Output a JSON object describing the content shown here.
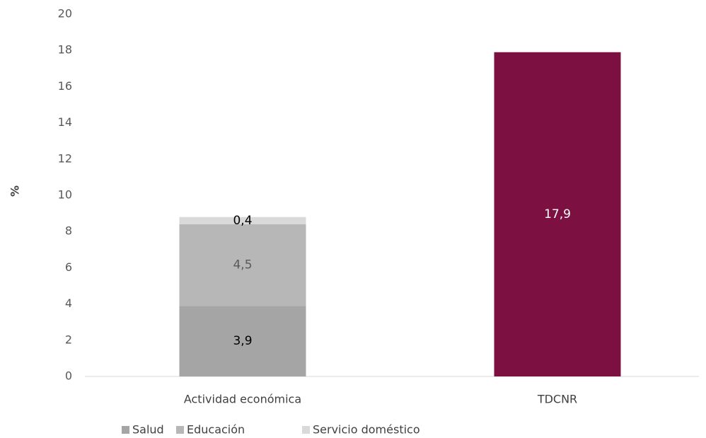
{
  "chart_data": {
    "type": "bar",
    "stacked": true,
    "categories": [
      "Actividad económica",
      "TDCNR"
    ],
    "series": [
      {
        "name": "Salud",
        "values": [
          3.9,
          null
        ],
        "color": "#a5a5a5",
        "label_color": "#000000"
      },
      {
        "name": "Educación",
        "values": [
          4.5,
          null
        ],
        "color": "#b7b7b7",
        "label_color": "#595959"
      },
      {
        "name": "Servicio doméstico",
        "values": [
          0.4,
          null
        ],
        "color": "#d9d9d9",
        "label_color": "#000000"
      },
      {
        "name": "",
        "values": [
          null,
          17.9
        ],
        "color": "#7b1041",
        "label_color": "#ffffff"
      }
    ],
    "data_labels": [
      [
        "3,9",
        "4,5",
        "0,4"
      ],
      [
        "17,9"
      ]
    ],
    "yticks": [
      "0",
      "2",
      "4",
      "6",
      "8",
      "10",
      "12",
      "14",
      "16",
      "18",
      "20"
    ],
    "ylim": [
      0,
      20
    ],
    "ylabel": "%",
    "xlabel": "",
    "title": "",
    "legend": {
      "position": "bottom-left",
      "entries": [
        "Salud",
        "Educación",
        "Servicio doméstico"
      ]
    },
    "grid": false
  }
}
